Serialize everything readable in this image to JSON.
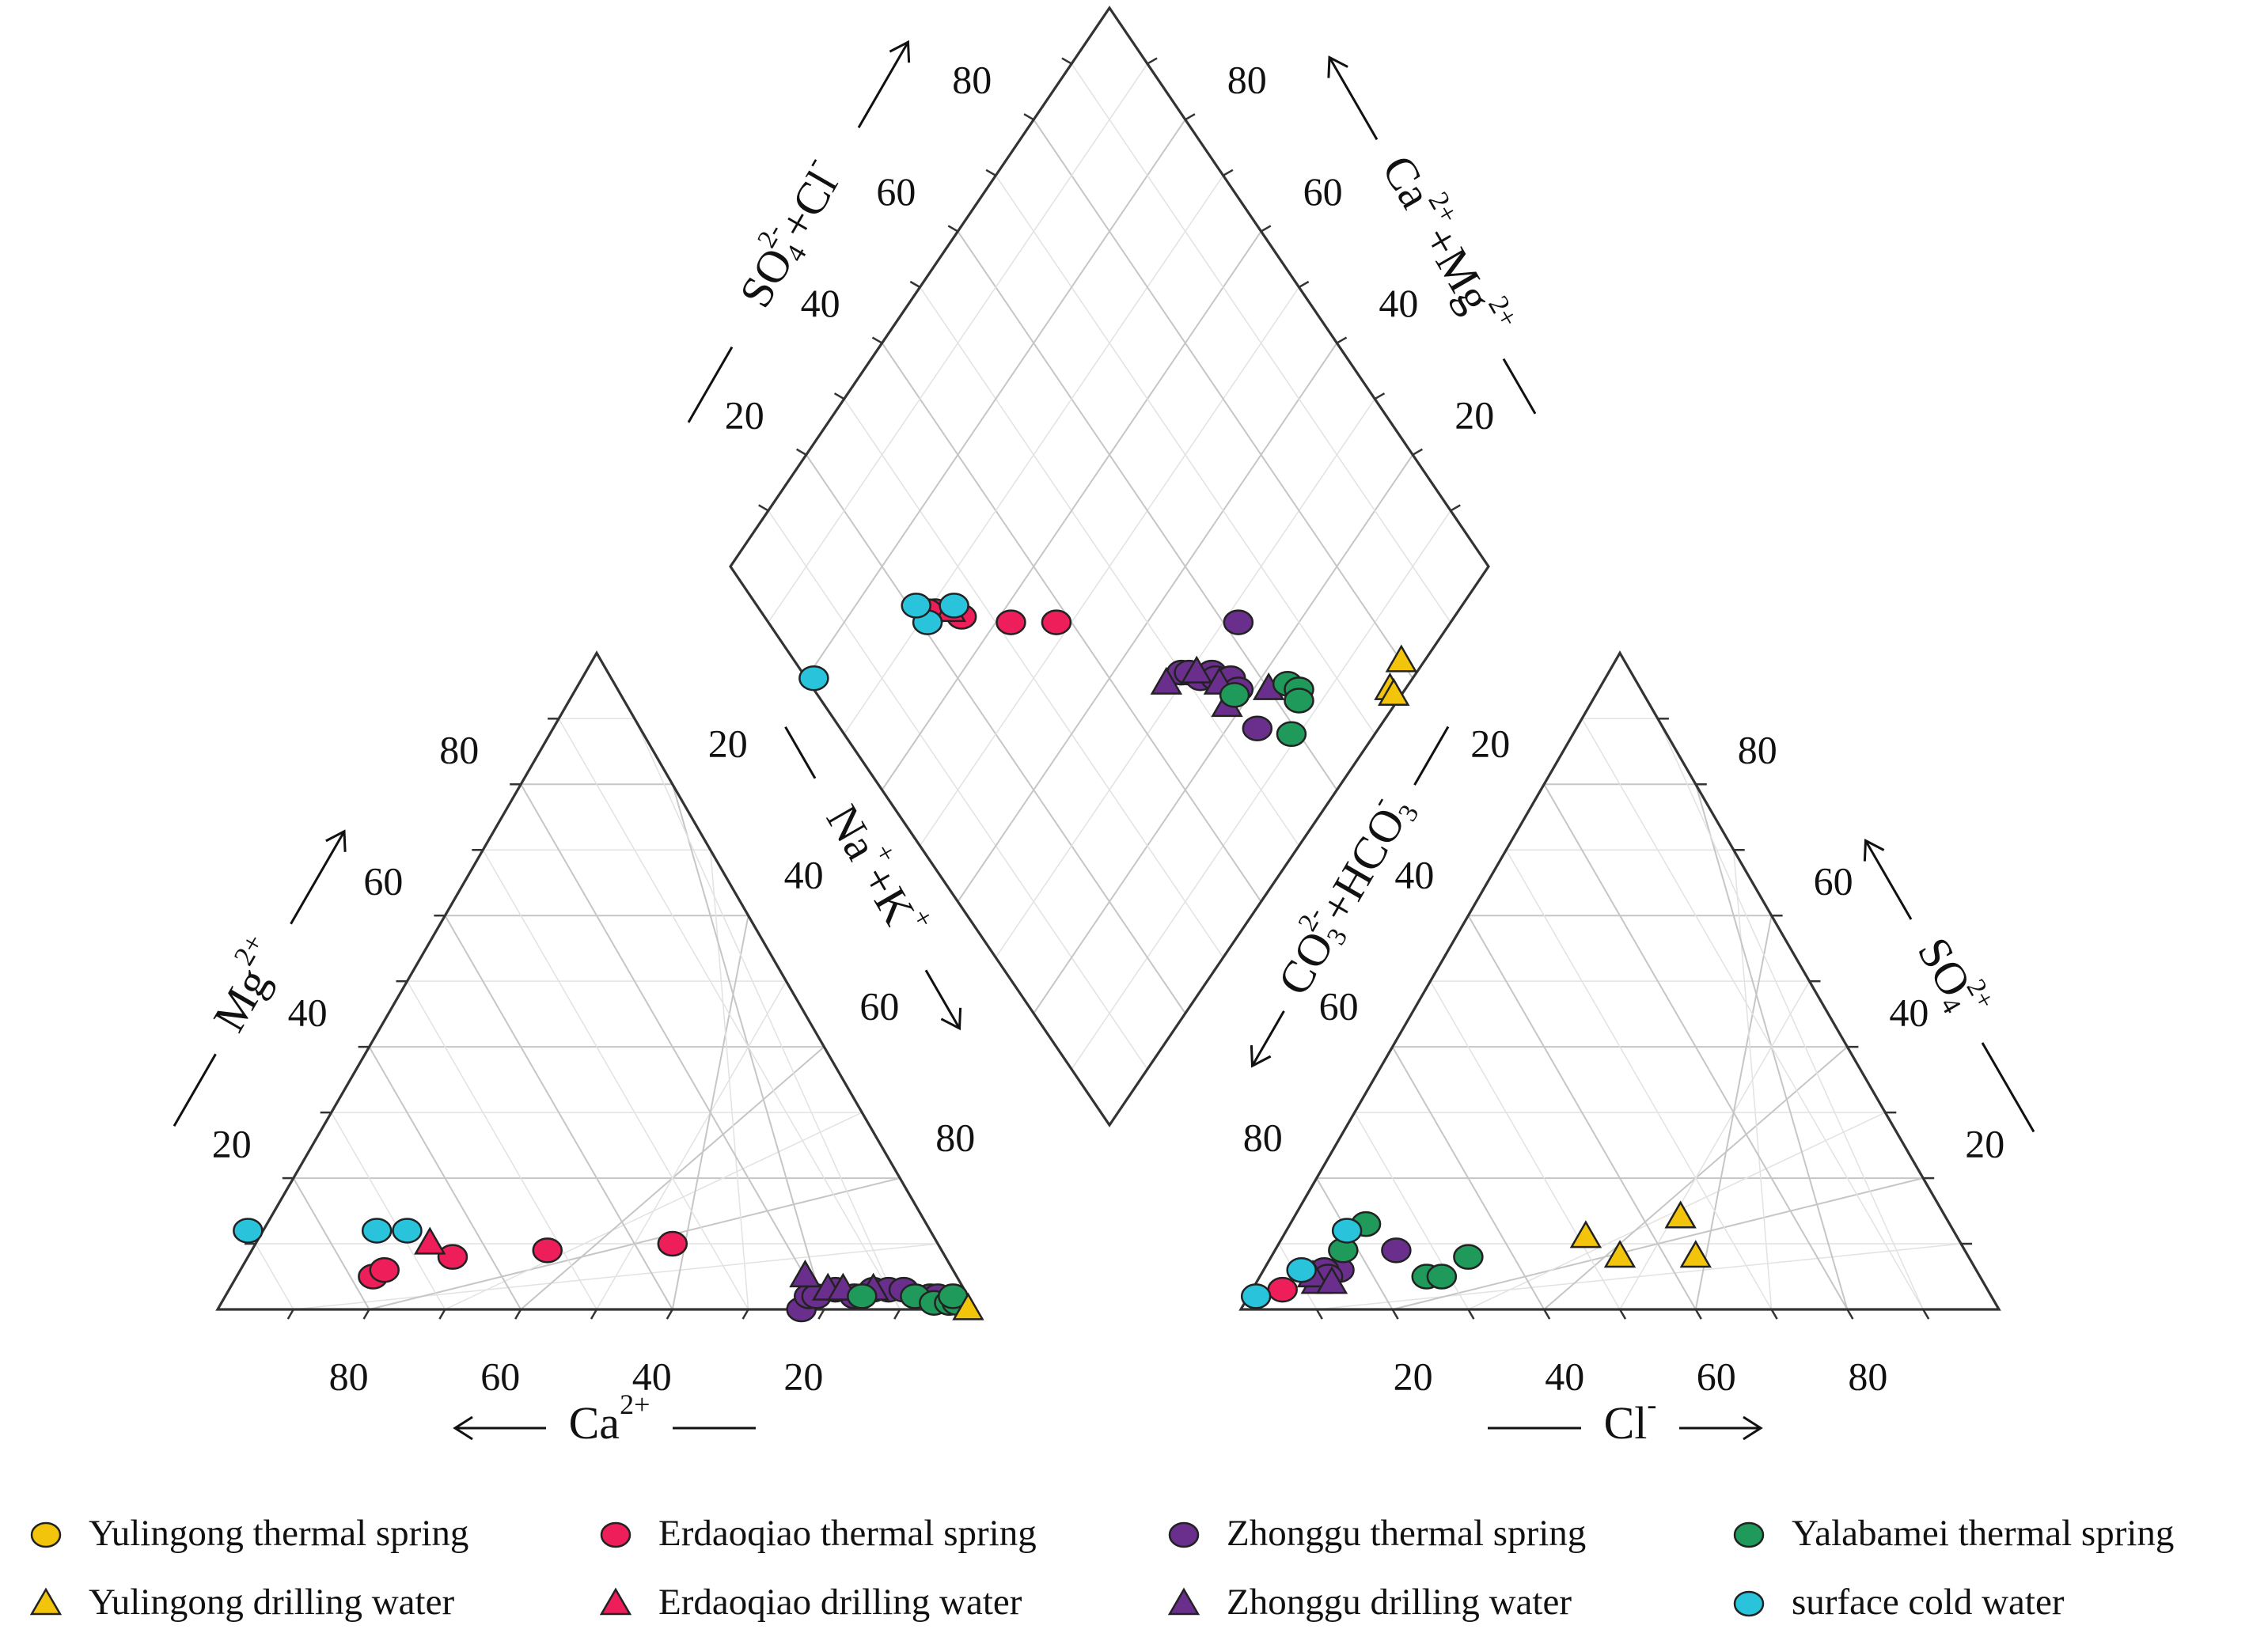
{
  "chart_data": {
    "type": "piper",
    "cation_triangle": {
      "axes": {
        "mg": {
          "label": "Mg",
          "sup": "2+",
          "ticks": [
            "80",
            "60",
            "40",
            "20"
          ]
        },
        "ca": {
          "label": "Ca",
          "sup": "2+",
          "ticks": [
            "80",
            "60",
            "40",
            "20"
          ]
        },
        "nak": {
          "label": "Na",
          "sup": "+",
          "label2": "+K",
          "sup2": "+",
          "ticks": [
            "20",
            "40",
            "60",
            "80"
          ]
        }
      }
    },
    "anion_triangle": {
      "axes": {
        "so4": {
          "label": "SO",
          "sub": "4",
          "sup": "2+",
          "ticks": [
            "80",
            "60",
            "40",
            "20"
          ]
        },
        "cl": {
          "label": "Cl",
          "sup": "-",
          "ticks": [
            "20",
            "40",
            "60",
            "80"
          ]
        },
        "co3hco3": {
          "label": "CO",
          "sub": "3",
          "sup": "2-",
          "label2": "+HCO",
          "sub2": "3",
          "sup2": "-",
          "ticks": [
            "20",
            "40",
            "60",
            "80"
          ]
        }
      }
    },
    "diamond": {
      "axes": {
        "so4cl": {
          "label": "SO",
          "sub": "4",
          "sup": "2-",
          "label2": "+Cl",
          "sup2": "-",
          "ticks": [
            "80",
            "60",
            "40",
            "20"
          ]
        },
        "camg": {
          "label": "Ca",
          "sup": "2+",
          "label2": "+Mg",
          "sup2": "2+",
          "ticks": [
            "80",
            "60",
            "40",
            "20"
          ]
        }
      }
    },
    "legend": [
      {
        "label": "Yulingong thermal spring",
        "color": "#f2c40c",
        "marker": "circle"
      },
      {
        "label": "Erdaoqiao thermal spring",
        "color": "#ee1e5a",
        "marker": "circle"
      },
      {
        "label": "Zhonggu thermal spring",
        "color": "#6a2f8c",
        "marker": "circle"
      },
      {
        "label": "Yalabamei thermal spring",
        "color": "#1f9a5a",
        "marker": "circle"
      },
      {
        "label": "Yulingong drilling water",
        "color": "#f2c40c",
        "marker": "triangle"
      },
      {
        "label": "Erdaoqiao drilling water",
        "color": "#ee1e5a",
        "marker": "triangle"
      },
      {
        "label": "Zhonggu drilling water",
        "color": "#6a2f8c",
        "marker": "triangle"
      },
      {
        "label": "surface cold water",
        "color": "#29c3dc",
        "marker": "circle"
      }
    ],
    "series": [
      {
        "name": "Yulingong thermal spring",
        "color": "#f2c40c",
        "marker": "circle",
        "cations": [],
        "anions": [],
        "diamond": []
      },
      {
        "name": "Erdaoqiao thermal spring",
        "color": "#ee1e5a",
        "marker": "circle",
        "cations": [
          [
            77,
            5
          ],
          [
            75,
            6
          ],
          [
            65,
            8
          ],
          [
            52,
            9
          ],
          [
            35,
            10
          ]
        ],
        "anions": [
          [
            4,
            3
          ]
        ],
        "diamond": [
          [
            69,
            23
          ],
          [
            70,
            22
          ],
          [
            65,
            26
          ],
          [
            58,
            32
          ],
          [
            52,
            38
          ]
        ]
      },
      {
        "name": "Erdaoqiao drilling water",
        "color": "#ee1e5a",
        "marker": "triangle",
        "cations": [
          [
            67,
            10
          ]
        ],
        "anions": [],
        "diamond": [
          [
            67,
            25
          ]
        ]
      },
      {
        "name": "Zhonggu thermal spring",
        "color": "#6a2f8c",
        "marker": "circle",
        "cations": [
          [
            23,
            0
          ],
          [
            21,
            2
          ],
          [
            20,
            2
          ],
          [
            17,
            3
          ],
          [
            15,
            2
          ],
          [
            12,
            3
          ],
          [
            10,
            3
          ],
          [
            8,
            3
          ],
          [
            5,
            2
          ],
          [
            4,
            2
          ],
          [
            3,
            1
          ]
        ],
        "anions": [
          [
            10,
            6
          ],
          [
            16,
            9
          ],
          [
            8,
            6
          ],
          [
            9,
            5
          ]
        ],
        "diamond": [
          [
            31,
            50
          ],
          [
            30,
            51
          ],
          [
            28,
            52
          ],
          [
            27,
            54
          ],
          [
            26,
            54
          ],
          [
            24,
            56
          ],
          [
            22,
            56
          ],
          [
            16,
            55
          ],
          [
            28,
            62
          ]
        ]
      },
      {
        "name": "Zhonggu drilling water",
        "color": "#6a2f8c",
        "marker": "triangle",
        "cations": [
          [
            20,
            5
          ],
          [
            18,
            3
          ],
          [
            16,
            3
          ],
          [
            12,
            3
          ]
        ],
        "anions": [
          [
            8,
            4
          ],
          [
            7,
            5
          ],
          [
            10,
            4
          ]
        ],
        "diamond": [
          [
            32,
            47
          ],
          [
            29,
            52
          ],
          [
            25,
            54
          ],
          [
            22,
            53
          ],
          [
            18,
            60
          ]
        ]
      },
      {
        "name": "Yalabamei thermal spring",
        "color": "#1f9a5a",
        "marker": "circle",
        "cations": [
          [
            14,
            2
          ],
          [
            7,
            2
          ],
          [
            5,
            1
          ],
          [
            3,
            1
          ],
          [
            2,
            1
          ],
          [
            2,
            2
          ]
        ],
        "anions": [
          [
            10,
            13
          ],
          [
            9,
            9
          ],
          [
            22,
            5
          ],
          [
            24,
            5
          ],
          [
            26,
            8
          ]
        ],
        "diamond": [
          [
            22,
            55
          ],
          [
            11,
            59
          ],
          [
            16,
            63
          ],
          [
            14,
            64
          ],
          [
            13,
            63
          ]
        ]
      },
      {
        "name": "Yulingong drilling water",
        "color": "#f2c40c",
        "marker": "triangle",
        "cations": [
          [
            1,
            0
          ]
        ],
        "anions": [
          [
            40,
            11
          ],
          [
            46,
            8
          ],
          [
            56,
            8
          ],
          [
            51,
            14
          ]
        ],
        "diamond": [
          [
            3,
            80
          ],
          [
            2,
            76
          ],
          [
            1,
            76
          ]
        ]
      },
      {
        "name": "surface cold water",
        "color": "#29c3dc",
        "marker": "circle",
        "cations": [
          [
            90,
            12
          ],
          [
            73,
            12
          ],
          [
            69,
            12
          ]
        ],
        "anions": [
          [
            8,
            12
          ],
          [
            5,
            6
          ],
          [
            1,
            2
          ]
        ],
        "diamond": [
          [
            79,
            1
          ],
          [
            69,
            21
          ],
          [
            72,
            21
          ],
          [
            67,
            26
          ]
        ]
      }
    ]
  }
}
